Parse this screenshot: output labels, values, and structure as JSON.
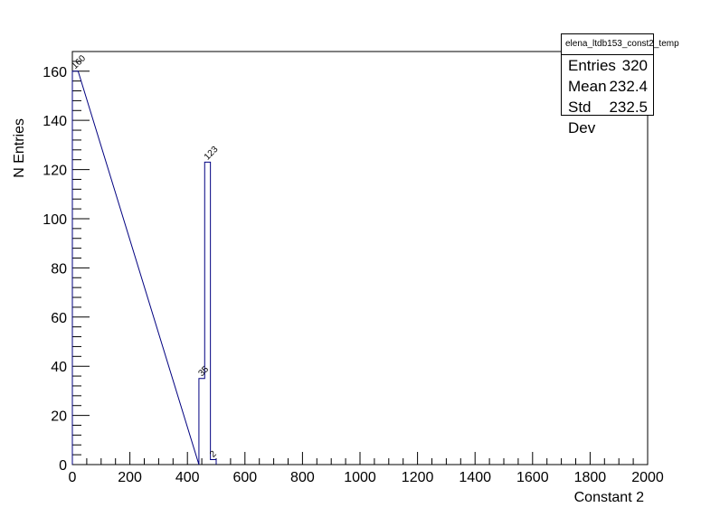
{
  "chart_data": {
    "type": "histogram",
    "xlabel": "Constant 2",
    "ylabel": "N Entries",
    "xlim": [
      0,
      2000
    ],
    "ylim": [
      0,
      168
    ],
    "x_ticks": [
      0,
      200,
      400,
      600,
      800,
      1000,
      1200,
      1400,
      1600,
      1800,
      2000
    ],
    "y_ticks": [
      0,
      20,
      40,
      60,
      80,
      100,
      120,
      140,
      160
    ],
    "grid": false,
    "bin_width": 20,
    "bins": [
      {
        "x": [
          0,
          20
        ],
        "value": 160,
        "label": "160"
      },
      {
        "x": [
          440,
          460
        ],
        "value": 35,
        "label": "35"
      },
      {
        "x": [
          460,
          480
        ],
        "value": 123,
        "label": "123"
      },
      {
        "x": [
          480,
          500
        ],
        "value": 2,
        "label": "2"
      }
    ],
    "line_color": "#000080"
  },
  "stats_box": {
    "title": "elena_ltdb153_const2_temp",
    "rows": [
      {
        "label": "Entries",
        "value": "320"
      },
      {
        "label": "Mean",
        "value": "232.4"
      },
      {
        "label": "Std Dev",
        "value": "232.5"
      }
    ]
  }
}
